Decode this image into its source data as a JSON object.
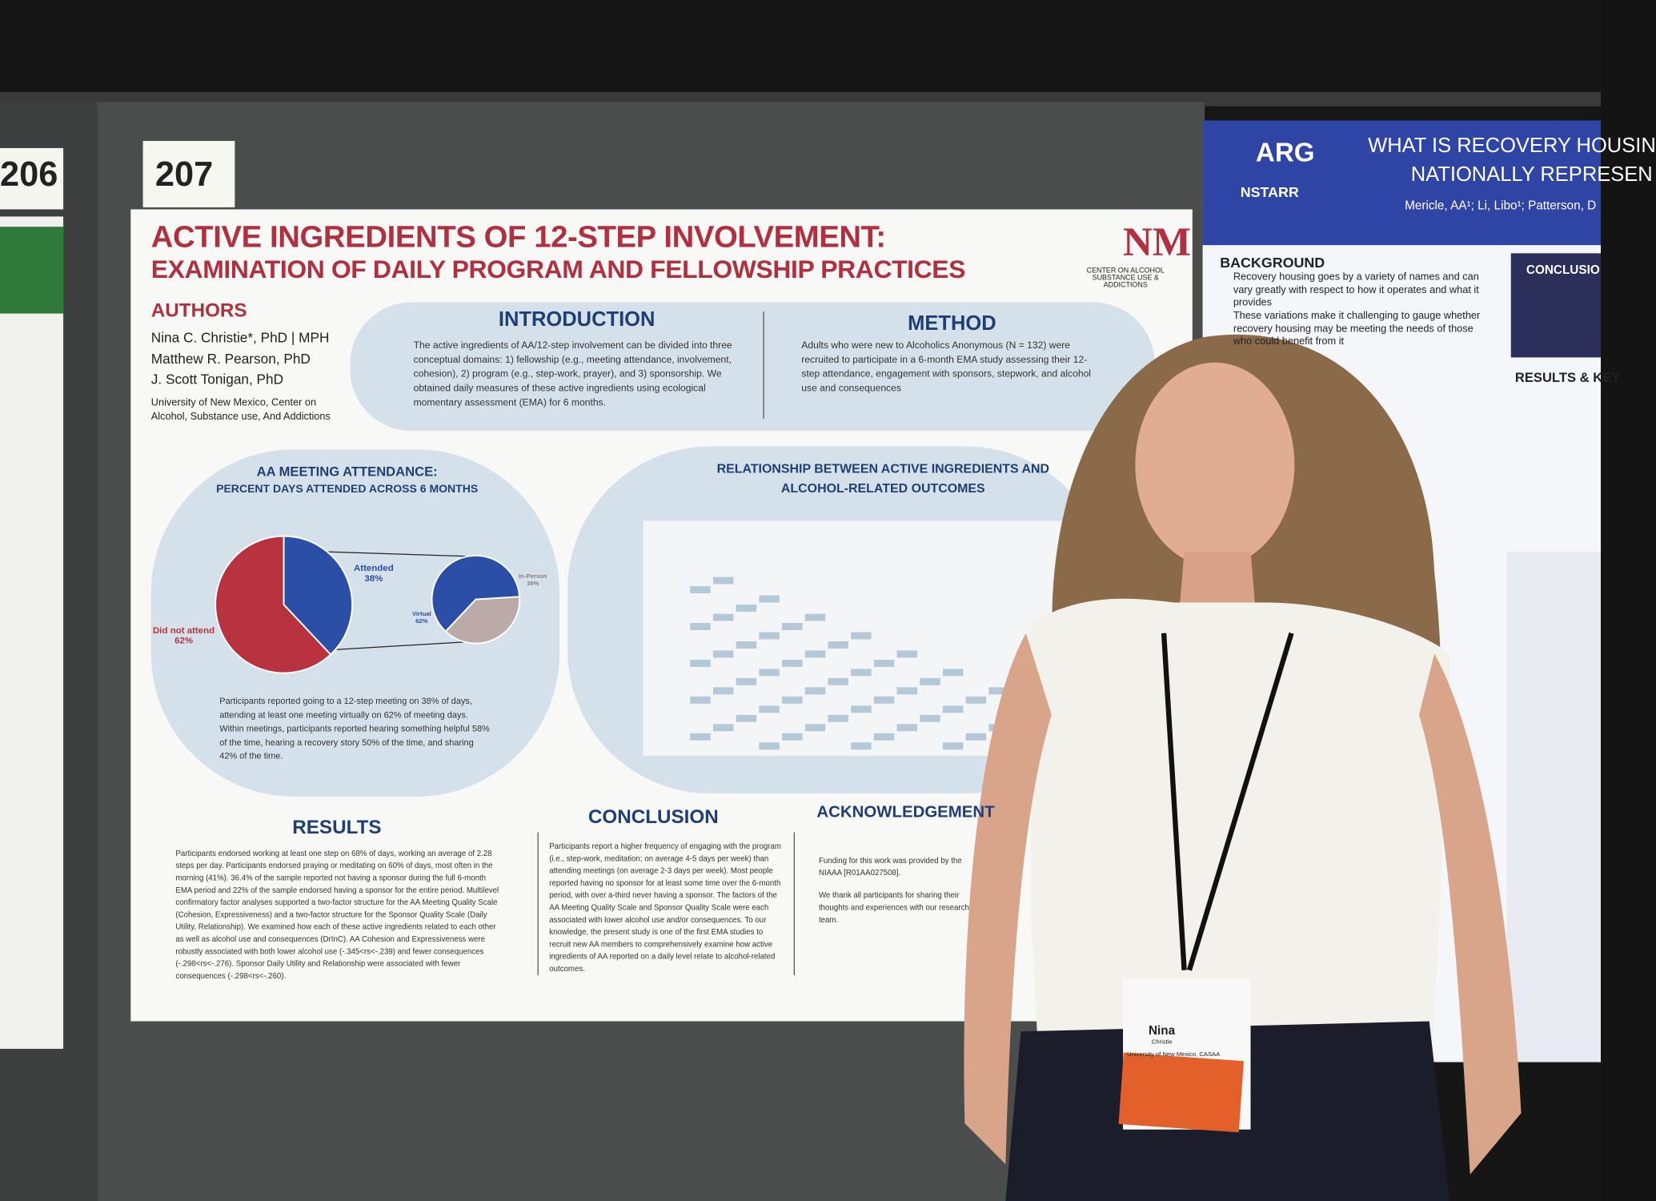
{
  "booth_numbers": [
    "206",
    "207"
  ],
  "poster": {
    "title_line1": "ACTIVE INGREDIENTS OF 12-STEP INVOLVEMENT:",
    "title_line2": "EXAMINATION OF DAILY PROGRAM AND FELLOWSHIP PRACTICES",
    "logo_text": "CENTER ON ALCOHOL SUBSTANCE USE & ADDICTIONS",
    "authors": {
      "heading": "AUTHORS",
      "names": [
        "Nina C. Christie*, PhD | MPH",
        "Matthew R. Pearson, PhD",
        "J. Scott Tonigan, PhD"
      ],
      "affiliation": "University of New Mexico, Center on Alcohol, Substance use, And Addictions"
    },
    "introduction": {
      "heading": "INTRODUCTION",
      "text": "The active ingredients of AA/12-step involvement can be divided into three conceptual domains: 1) fellowship (e.g., meeting attendance, involvement, cohesion), 2) program (e.g., step-work, prayer), and 3) sponsorship. We obtained daily measures of these active ingredients using ecological momentary assessment (EMA) for 6 months."
    },
    "method": {
      "heading": "METHOD",
      "text": "Adults who were new to Alcoholics Anonymous (N = 132) were recruited to participate in a 6-month EMA study assessing their 12-step attendance, engagement with sponsors, stepwork, and alcohol use and consequences"
    },
    "attendance": {
      "heading_line1": "AA MEETING ATTENDANCE:",
      "heading_line2": "PERCENT DAYS ATTENDED ACROSS 6 MONTHS",
      "overall": [
        {
          "label": "Did not attend",
          "value": 62,
          "value_label": "62%",
          "color": "#b8323f"
        },
        {
          "label": "Attended",
          "value": 38,
          "value_label": "38%",
          "color": "#2b4fa6"
        }
      ],
      "attended": [
        {
          "label": "Virtual",
          "value": 62,
          "value_label": "62%",
          "color": "#2b4fa6"
        },
        {
          "label": "In-Person",
          "value": 38,
          "value_label": "38%",
          "color": "#bcaaa9"
        }
      ],
      "caption": "Participants reported going to a 12-step meeting on 38% of days, attending at least one meeting virtually on 62% of meeting days. Within meetings, participants reported hearing something helpful 58% of the time, hearing a recovery story 50% of the time, and sharing 42% of the time."
    },
    "relationship": {
      "heading_line1": "RELATIONSHIP BETWEEN ACTIVE INGREDIENTS AND",
      "heading_line2": "ALCOHOL-RELATED OUTCOMES"
    },
    "results": {
      "heading": "RESULTS",
      "text": "Participants endorsed working at least one step on 68% of days, working an average of 2.28 steps per day. Participants endorsed praying or meditating on 60% of days, most often in the morning (41%). 36.4% of the sample reported not having a sponsor during the full 6-month EMA period and 22% of the sample endorsed having a sponsor for the entire period. Multilevel confirmatory factor analyses supported a two-factor structure for the AA Meeting Quality Scale (Cohesion, Expressiveness) and a two-factor structure for the Sponsor Quality Scale (Daily Utility, Relationship). We examined how each of these active ingredients related to each other as well as alcohol use and consequences (DrInC). AA Cohesion and Expressiveness were robustly associated with both lower alcohol use (-.345<rs<-.239) and fewer consequences (-.298<rs<-.276). Sponsor Daily Utility and Relationship were associated with fewer consequences (-.298<rs<-.260)."
    },
    "conclusion": {
      "heading": "CONCLUSION",
      "text": "Participants report a higher frequency of engaging with the program (i.e., step-work, meditation; on average 4-5 days per week) than attending meetings (on average 2-3 days per week). Most people reported having no sponsor for at least some time over the 6-month period, with over a-third never having a sponsor. The factors of the AA Meeting Quality Scale and Sponsor Quality Scale were each associated with lower alcohol use and/or consequences. To our knowledge, the present study is one of the first EMA studies to recruit new AA members to comprehensively examine how active ingredients of AA reported on a daily level relate to alcohol-related outcomes."
    },
    "acknowledgement": {
      "heading": "ACKNOWLEDGEMENT",
      "funding": "Funding for this work was provided by the NIAAA [R01AA027508].",
      "thanks": "We thank all participants for sharing their thoughts and experiences with our research team."
    }
  },
  "neighbor_poster": {
    "logo1": "ARG",
    "logo2": "NSTARR",
    "title_line1": "WHAT IS RECOVERY HOUSIN",
    "title_line2": "NATIONALLY REPRESEN",
    "authors": "Mericle, AA¹; Li, Libo¹; Patterson, D",
    "background_heading": "BACKGROUND",
    "background": [
      "Recovery housing goes by a variety of names and can vary greatly with respect to how it operates and what it provides",
      "These variations make it challenging to gauge whether recovery housing may be meeting the needs of those who could benefit from it"
    ],
    "conclusion_heading": "CONCLUSIO",
    "results_heading": "RESULTS & KEY"
  },
  "badge": {
    "name": "Nina",
    "surname": "Christie",
    "affiliation": "University of New Mexico, CASAA"
  }
}
